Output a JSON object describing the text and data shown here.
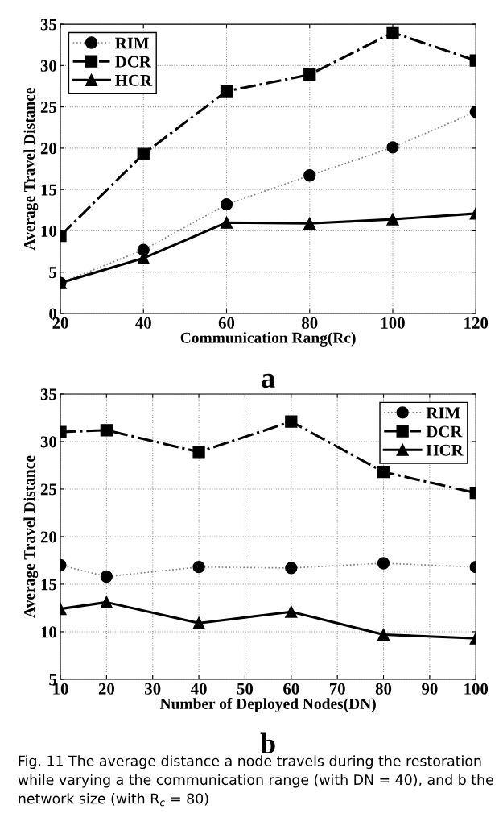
{
  "chart_data": [
    {
      "type": "line",
      "xlabel": "Communication Rang(Rc)",
      "ylabel": "Average Travel Distance",
      "x": [
        20,
        40,
        60,
        80,
        100,
        120
      ],
      "series": [
        {
          "name": "RIM",
          "color": "#000000",
          "marker": "circle",
          "line_style": "dotted",
          "values": [
            3.7,
            7.7,
            13.2,
            16.7,
            20.1,
            24.4
          ]
        },
        {
          "name": "DCR",
          "color": "#000000",
          "marker": "square",
          "line_style": "dashdot",
          "values": [
            9.4,
            19.3,
            26.9,
            28.9,
            34.0,
            30.6
          ]
        },
        {
          "name": "HCR",
          "color": "#000000",
          "marker": "triangle",
          "line_style": "solid",
          "values": [
            3.7,
            6.7,
            11.0,
            10.9,
            11.4,
            12.1
          ]
        }
      ],
      "xlim": [
        20,
        120
      ],
      "xticks": [
        20,
        40,
        60,
        80,
        100,
        120
      ],
      "ylim": [
        0,
        35
      ],
      "yticks": [
        0,
        5,
        10,
        15,
        20,
        25,
        30,
        35
      ],
      "grid": true,
      "legend": "top left",
      "annotations": [
        "a"
      ]
    },
    {
      "type": "line",
      "xlabel": "Number of Deployed Nodes(DN)",
      "ylabel": "Average Travel Distance",
      "x": [
        10,
        20,
        40,
        60,
        80,
        100
      ],
      "series": [
        {
          "name": "RIM",
          "color": "#000000",
          "marker": "circle",
          "line_style": "dotted",
          "values": [
            17.0,
            15.8,
            16.8,
            16.7,
            17.2,
            16.8
          ]
        },
        {
          "name": "DCR",
          "color": "#000000",
          "marker": "square",
          "line_style": "dashdot",
          "values": [
            31.0,
            31.2,
            28.9,
            32.1,
            26.8,
            24.6
          ]
        },
        {
          "name": "HCR",
          "color": "#000000",
          "marker": "triangle",
          "line_style": "solid",
          "values": [
            12.4,
            13.1,
            10.9,
            12.1,
            9.7,
            9.3
          ]
        }
      ],
      "xlim": [
        10,
        100
      ],
      "xticks": [
        10,
        20,
        30,
        40,
        50,
        60,
        70,
        80,
        90,
        100
      ],
      "ylim": [
        5,
        35
      ],
      "yticks": [
        5,
        10,
        15,
        20,
        25,
        30,
        35
      ],
      "grid": true,
      "legend": "top right",
      "annotations": [
        "b",
        "Fig. 11 The average distance a node travels during the restoration while varying a the communication range (with DN = 40), and b the network size (with R$_{c}$ = 80)"
      ]
    }
  ]
}
